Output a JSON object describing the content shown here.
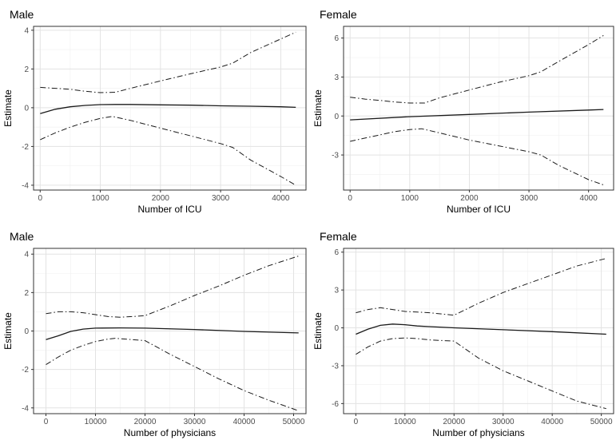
{
  "chart_data": [
    {
      "type": "line",
      "title": "Male",
      "xlabel": "Number of ICU",
      "ylabel": "Estimate",
      "xlim": [
        -110,
        4420
      ],
      "ylim": [
        -4.25,
        4.2
      ],
      "xticks": [
        0,
        1000,
        2000,
        3000,
        4000
      ],
      "yticks": [
        -4,
        -2,
        0,
        2,
        4
      ],
      "grid": true,
      "series": [
        {
          "role": "estimate",
          "line": "solid",
          "x": [
            0,
            250,
            500,
            750,
            1000,
            1250,
            1500,
            2000,
            2500,
            3000,
            3500,
            4000,
            4250
          ],
          "y": [
            -0.3,
            -0.08,
            0.05,
            0.12,
            0.16,
            0.17,
            0.17,
            0.15,
            0.13,
            0.1,
            0.08,
            0.05,
            0.02
          ]
        },
        {
          "role": "upper",
          "line": "dotdash",
          "x": [
            0,
            250,
            500,
            750,
            1000,
            1250,
            1500,
            2000,
            2500,
            3000,
            3200,
            3500,
            4000,
            4250
          ],
          "y": [
            1.05,
            1.0,
            0.95,
            0.85,
            0.78,
            0.8,
            1.0,
            1.38,
            1.75,
            2.1,
            2.3,
            2.85,
            3.55,
            3.9
          ]
        },
        {
          "role": "lower",
          "line": "dotdash",
          "x": [
            0,
            250,
            500,
            750,
            1000,
            1200,
            1500,
            2000,
            2500,
            3000,
            3200,
            3500,
            4000,
            4250
          ],
          "y": [
            -1.65,
            -1.3,
            -1.0,
            -0.75,
            -0.55,
            -0.45,
            -0.65,
            -1.05,
            -1.45,
            -1.85,
            -2.05,
            -2.7,
            -3.55,
            -4.0
          ]
        }
      ]
    },
    {
      "type": "line",
      "title": "Female",
      "xlabel": "Number of ICU",
      "ylabel": "Estimate",
      "xlim": [
        -110,
        4420
      ],
      "ylim": [
        -5.7,
        6.9
      ],
      "xticks": [
        0,
        1000,
        2000,
        3000,
        4000
      ],
      "yticks": [
        -3,
        0,
        3,
        6
      ],
      "grid": true,
      "series": [
        {
          "role": "estimate",
          "line": "solid",
          "x": [
            0,
            1000,
            2000,
            3000,
            4000,
            4250
          ],
          "y": [
            -0.3,
            -0.05,
            0.12,
            0.3,
            0.46,
            0.5
          ]
        },
        {
          "role": "upper",
          "line": "dotdash",
          "x": [
            0,
            250,
            500,
            750,
            1000,
            1250,
            1500,
            2000,
            2500,
            3000,
            3200,
            3500,
            4000,
            4250
          ],
          "y": [
            1.45,
            1.3,
            1.2,
            1.08,
            1.0,
            1.0,
            1.4,
            2.0,
            2.6,
            3.1,
            3.4,
            4.2,
            5.5,
            6.2
          ]
        },
        {
          "role": "lower",
          "line": "dotdash",
          "x": [
            0,
            250,
            500,
            750,
            1000,
            1200,
            1500,
            2000,
            2500,
            3000,
            3200,
            3500,
            4000,
            4250
          ],
          "y": [
            -1.95,
            -1.7,
            -1.45,
            -1.2,
            -1.05,
            -0.98,
            -1.3,
            -1.85,
            -2.3,
            -2.75,
            -3.0,
            -3.8,
            -4.9,
            -5.3
          ]
        }
      ]
    },
    {
      "type": "line",
      "title": "Male",
      "xlabel": "Number of physicians",
      "ylabel": "Estimate",
      "xlim": [
        -2500,
        52500
      ],
      "ylim": [
        -4.3,
        4.3
      ],
      "xticks": [
        0,
        10000,
        20000,
        30000,
        40000,
        50000
      ],
      "yticks": [
        -4,
        -2,
        0,
        2,
        4
      ],
      "grid": true,
      "series": [
        {
          "role": "estimate",
          "line": "solid",
          "x": [
            0,
            2500,
            5000,
            7500,
            10000,
            15000,
            20000,
            30000,
            40000,
            51000
          ],
          "y": [
            -0.45,
            -0.25,
            -0.02,
            0.1,
            0.15,
            0.16,
            0.15,
            0.08,
            -0.02,
            -0.1
          ]
        },
        {
          "role": "upper",
          "line": "dotdash",
          "x": [
            0,
            2500,
            5000,
            7500,
            10000,
            12500,
            15000,
            17500,
            20000,
            25000,
            30000,
            35000,
            40000,
            45000,
            51000
          ],
          "y": [
            0.9,
            1.0,
            1.0,
            0.95,
            0.85,
            0.75,
            0.72,
            0.75,
            0.8,
            1.3,
            1.85,
            2.35,
            2.9,
            3.4,
            3.9
          ]
        },
        {
          "role": "lower",
          "line": "dotdash",
          "x": [
            0,
            2500,
            5000,
            7500,
            10000,
            12500,
            14000,
            17500,
            20000,
            25000,
            30000,
            35000,
            40000,
            45000,
            51000
          ],
          "y": [
            -1.75,
            -1.35,
            -1.0,
            -0.75,
            -0.55,
            -0.42,
            -0.38,
            -0.45,
            -0.5,
            -1.2,
            -1.85,
            -2.5,
            -3.1,
            -3.6,
            -4.15
          ]
        }
      ]
    },
    {
      "type": "line",
      "title": "Female",
      "xlabel": "Number of physicians",
      "ylabel": "Estimate",
      "xlim": [
        -2500,
        52500
      ],
      "ylim": [
        -6.8,
        6.3
      ],
      "xticks": [
        0,
        10000,
        20000,
        30000,
        40000,
        50000
      ],
      "yticks": [
        -6,
        -3,
        0,
        3,
        6
      ],
      "grid": true,
      "series": [
        {
          "role": "estimate",
          "line": "solid",
          "x": [
            0,
            2500,
            5000,
            7500,
            10000,
            12500,
            15000,
            20000,
            30000,
            40000,
            51000
          ],
          "y": [
            -0.5,
            -0.1,
            0.2,
            0.3,
            0.25,
            0.15,
            0.1,
            0.0,
            -0.15,
            -0.3,
            -0.5
          ]
        },
        {
          "role": "upper",
          "line": "dotdash",
          "x": [
            0,
            2500,
            5000,
            7500,
            10000,
            12500,
            15000,
            17500,
            20000,
            25000,
            30000,
            35000,
            40000,
            45000,
            51000
          ],
          "y": [
            1.2,
            1.45,
            1.6,
            1.45,
            1.3,
            1.25,
            1.2,
            1.1,
            1.0,
            1.95,
            2.8,
            3.5,
            4.2,
            4.9,
            5.5
          ]
        },
        {
          "role": "lower",
          "line": "dotdash",
          "x": [
            0,
            2500,
            5000,
            7500,
            10000,
            12500,
            15000,
            17500,
            20000,
            25000,
            30000,
            35000,
            40000,
            45000,
            51000
          ],
          "y": [
            -2.1,
            -1.5,
            -1.05,
            -0.85,
            -0.8,
            -0.85,
            -0.95,
            -1.0,
            -1.05,
            -2.4,
            -3.4,
            -4.2,
            -5.0,
            -5.8,
            -6.4
          ]
        }
      ]
    }
  ]
}
